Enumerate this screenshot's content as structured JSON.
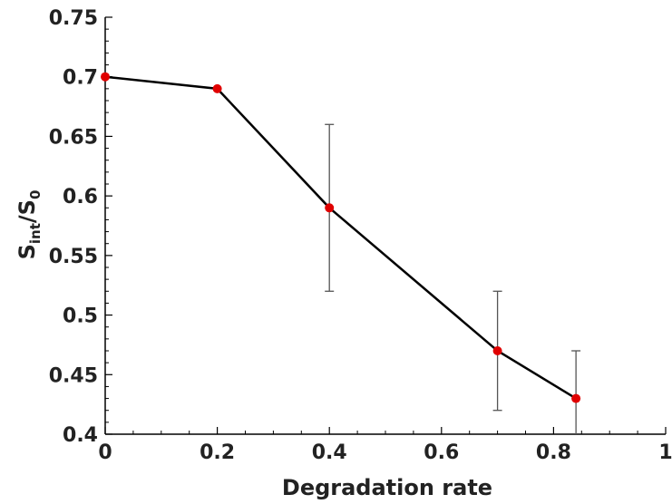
{
  "chart_data": {
    "type": "line",
    "title": "",
    "xlabel": "Degradation rate",
    "ylabel": {
      "main": "S",
      "sub1": "int",
      "slash": "/S",
      "sub2": "0"
    },
    "xlim": [
      0,
      1
    ],
    "ylim": [
      0.4,
      0.75
    ],
    "x_ticks": [
      0,
      0.2,
      0.4,
      0.6,
      0.8,
      1
    ],
    "x_tick_labels": [
      "0",
      "0.2",
      "0.4",
      "0.6",
      "0.8",
      "1"
    ],
    "y_ticks": [
      0.4,
      0.45,
      0.5,
      0.55,
      0.6,
      0.65,
      0.7,
      0.75
    ],
    "y_tick_labels": [
      "0.4",
      "0.45",
      "0.5",
      "0.55",
      "0.6",
      "0.65",
      "0.7",
      "0.75"
    ],
    "grid": false,
    "series": [
      {
        "x": [
          0,
          0.2,
          0.4,
          0.7,
          0.84
        ],
        "y": [
          0.7,
          0.69,
          0.59,
          0.47,
          0.43
        ],
        "error_low": [
          null,
          null,
          0.52,
          0.42,
          0.39
        ],
        "error_high": [
          null,
          null,
          0.66,
          0.52,
          0.47
        ],
        "line_color": "#000000",
        "marker_color": "#e00000",
        "errorbar_color": "#555555"
      }
    ]
  }
}
